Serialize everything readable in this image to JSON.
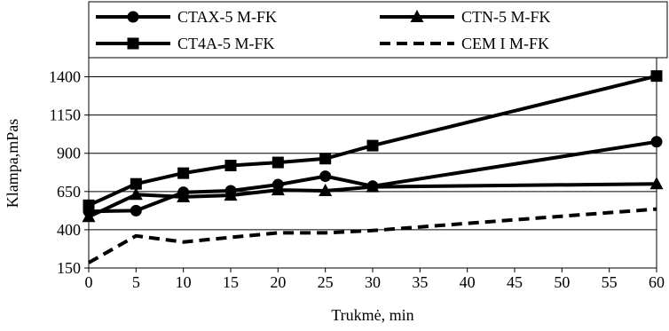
{
  "chart_data": {
    "type": "line",
    "xlabel": "Trukmė, min",
    "ylabel": "Klampa,mPas",
    "x_ticks": [
      "0",
      "5",
      "10",
      "15",
      "20",
      "25",
      "30",
      "35",
      "40",
      "45",
      "50",
      "55",
      "60"
    ],
    "y_ticks": [
      "150",
      "400",
      "650",
      "900",
      "1150",
      "1400"
    ],
    "xlim": [
      0,
      60
    ],
    "ylim": [
      150,
      1525
    ],
    "grid": "horizontal",
    "legend_position": "top",
    "series": [
      {
        "name": "CTAX-5 M-FK",
        "marker": "circle",
        "dash": "solid",
        "color": "#000000",
        "x": [
          0,
          5,
          10,
          15,
          20,
          25,
          30,
          60
        ],
        "y": [
          520,
          525,
          645,
          655,
          695,
          750,
          685,
          975
        ]
      },
      {
        "name": "CTN-5 M-FK",
        "marker": "triangle",
        "dash": "solid",
        "color": "#000000",
        "x": [
          0,
          5,
          10,
          15,
          20,
          25,
          30,
          60
        ],
        "y": [
          485,
          630,
          615,
          625,
          660,
          655,
          680,
          700
        ]
      },
      {
        "name": "CT4A-5 M-FK",
        "marker": "square",
        "dash": "solid",
        "color": "#000000",
        "x": [
          0,
          5,
          10,
          15,
          20,
          25,
          30,
          60
        ],
        "y": [
          560,
          700,
          770,
          820,
          840,
          865,
          950,
          1405
        ]
      },
      {
        "name": "CEM I M-FK",
        "marker": "none",
        "dash": "dashed",
        "color": "#000000",
        "x": [
          0,
          5,
          10,
          15,
          20,
          25,
          30,
          60
        ],
        "y": [
          185,
          360,
          320,
          350,
          380,
          380,
          395,
          535
        ]
      }
    ]
  }
}
